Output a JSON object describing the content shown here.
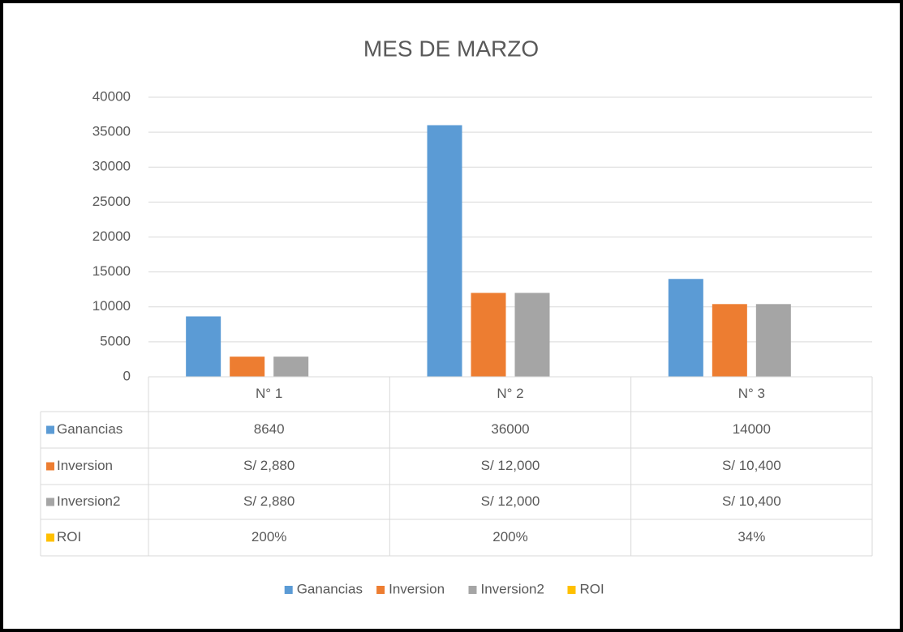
{
  "chart_data": {
    "type": "bar",
    "title": "MES DE MARZO",
    "categories": [
      "N° 1",
      "N° 2",
      "N° 3"
    ],
    "series": [
      {
        "name": "Ganancias",
        "color": "#5b9bd5",
        "values": [
          8640,
          36000,
          14000
        ]
      },
      {
        "name": "Inversion",
        "color": "#ed7d31",
        "values": [
          2880,
          12000,
          10400
        ],
        "value_labels": [
          "S/ 2,880",
          "S/ 12,000",
          "S/ 10,400"
        ]
      },
      {
        "name": "Inversion2",
        "color": "#a5a5a5",
        "values": [
          2880,
          12000,
          10400
        ],
        "value_labels": [
          "S/ 2,880",
          "S/ 12,000",
          "S/ 10,400"
        ]
      },
      {
        "name": "ROI",
        "color": "#ffc000",
        "values": [
          2,
          2,
          0.34
        ],
        "value_labels": [
          "200%",
          "200%",
          "34%"
        ]
      }
    ],
    "ylim": [
      0,
      40000
    ],
    "yticks": [
      0,
      5000,
      10000,
      15000,
      20000,
      25000,
      30000,
      35000,
      40000
    ],
    "grid": true,
    "legend": "bottom",
    "data_table": true
  }
}
